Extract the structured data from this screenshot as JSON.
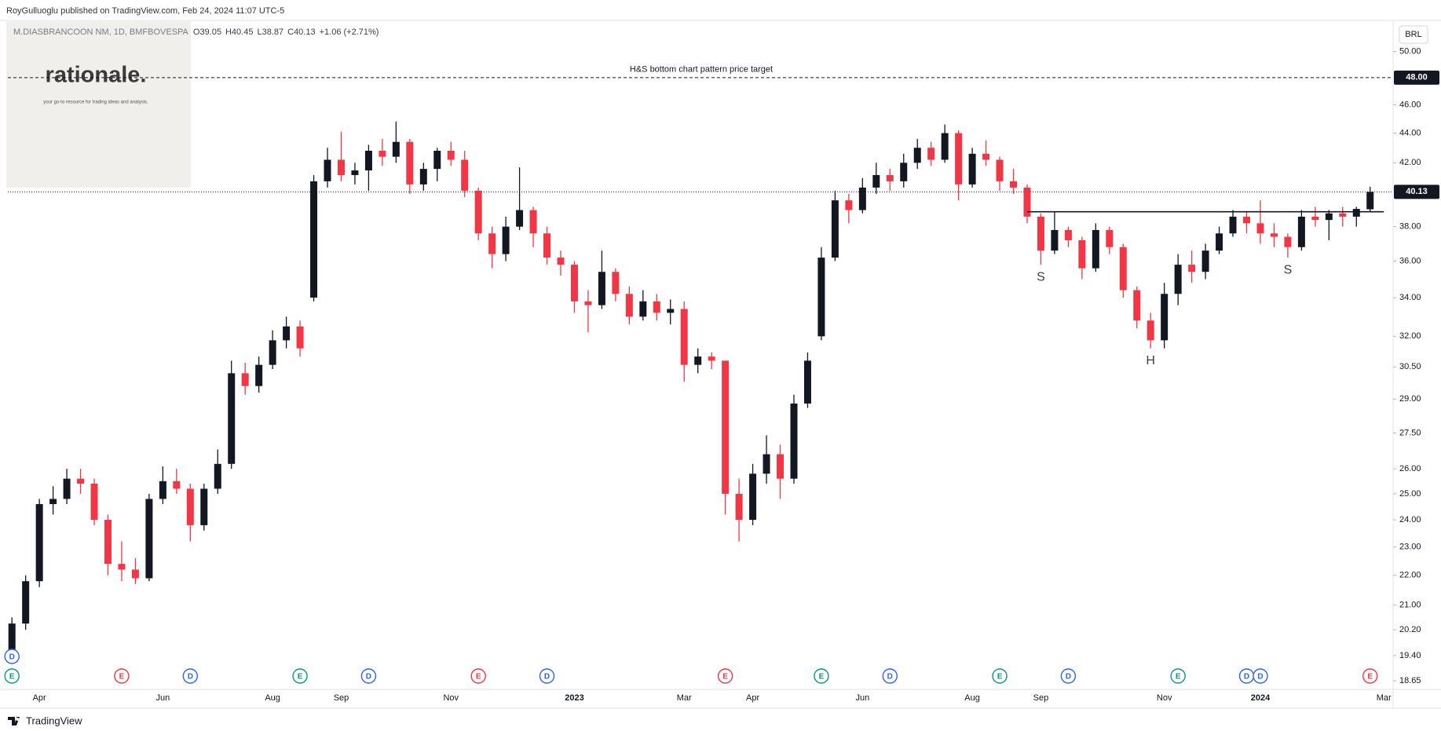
{
  "header": {
    "publisher": "RoyGulluoglu published on TradingView.com, Feb 24, 2024 11:07 UTC-5"
  },
  "logo": {
    "name": "rationale.",
    "tagline": "your go-to resource for trading ideas and analysis."
  },
  "footer": {
    "brand": "TradingView"
  },
  "chart_data": {
    "type": "candlestick",
    "symbol": "M.DIASBRANCOON NM, 1D, BMFBOVESPA",
    "ohlc_labels": [
      "O39.05",
      "H40.45",
      "L38.87",
      "C40.13",
      "+1.06 (+2.71%)"
    ],
    "currency": "BRL",
    "categories": [
      null,
      null,
      "Apr",
      null,
      null,
      null,
      null,
      null,
      null,
      null,
      null,
      "Jun",
      null,
      null,
      null,
      null,
      null,
      null,
      null,
      "Aug",
      null,
      null,
      null,
      null,
      "Sep",
      null,
      null,
      null,
      null,
      null,
      null,
      null,
      "Nov",
      null,
      null,
      null,
      null,
      null,
      null,
      null,
      null,
      "2023",
      null,
      null,
      null,
      null,
      null,
      null,
      null,
      "Mar",
      null,
      null,
      null,
      null,
      "Apr",
      null,
      null,
      null,
      null,
      null,
      null,
      null,
      "Jun",
      null,
      null,
      null,
      null,
      null,
      null,
      null,
      "Aug",
      null,
      null,
      null,
      null,
      "Sep",
      null,
      null,
      null,
      null,
      null,
      null,
      null,
      null,
      "Nov",
      null,
      null,
      null,
      null,
      null,
      null,
      "2024",
      null,
      null,
      null,
      null,
      null,
      null,
      null,
      null,
      "Mar"
    ],
    "open": [
      19.4,
      20.4,
      21.8,
      24.6,
      24.8,
      25.6,
      25.4,
      24.0,
      22.4,
      22.2,
      21.9,
      24.8,
      25.5,
      25.2,
      23.8,
      25.2,
      26.2,
      30.2,
      29.6,
      30.6,
      31.8,
      32.5,
      34.0,
      40.8,
      42.2,
      41.2,
      41.5,
      42.8,
      42.4,
      43.4,
      40.6,
      41.6,
      42.8,
      42.2,
      40.2,
      37.6,
      36.4,
      38.0,
      39.0,
      37.6,
      36.2,
      35.8,
      33.8,
      33.6,
      35.4,
      34.2,
      33.0,
      33.8,
      33.2,
      33.4,
      30.6,
      31.0,
      30.8,
      25.0,
      24.0,
      25.8,
      26.6,
      25.6,
      28.8,
      32.0,
      36.2,
      39.6,
      39.0,
      40.4,
      41.2,
      40.8,
      42.0,
      43.0,
      42.2,
      44.0,
      40.6,
      42.6,
      42.2,
      40.8,
      40.4,
      38.6,
      36.6,
      37.8,
      37.2,
      35.6,
      37.8,
      36.8,
      34.4,
      32.8,
      31.8,
      34.2,
      35.8,
      35.4,
      36.6,
      37.6,
      38.6,
      38.2,
      37.6,
      37.4,
      36.8,
      38.6,
      38.4,
      38.8,
      38.6,
      39.05,
      null
    ],
    "high": [
      20.6,
      22.0,
      24.8,
      25.3,
      26.0,
      26.0,
      25.6,
      24.2,
      23.2,
      22.6,
      25.0,
      26.1,
      26.0,
      25.4,
      25.4,
      26.8,
      30.8,
      30.7,
      31.0,
      32.3,
      33.0,
      32.8,
      41.2,
      43.0,
      44.1,
      42.0,
      43.2,
      43.6,
      44.8,
      43.6,
      42.0,
      43.0,
      43.4,
      42.8,
      40.4,
      38.0,
      38.6,
      41.7,
      39.2,
      38.0,
      36.6,
      36.0,
      34.4,
      36.6,
      35.6,
      34.6,
      34.4,
      34.2,
      33.9,
      33.8,
      31.4,
      31.2,
      30.8,
      25.6,
      26.2,
      27.4,
      27.0,
      29.2,
      31.2,
      36.8,
      40.2,
      40.0,
      41.0,
      42.0,
      41.6,
      42.6,
      43.6,
      43.4,
      44.6,
      44.2,
      43.0,
      43.5,
      42.4,
      41.6,
      40.6,
      38.8,
      38.9,
      38.0,
      37.4,
      38.2,
      38.0,
      37.0,
      34.6,
      33.2,
      34.8,
      36.4,
      36.6,
      37.0,
      38.0,
      39.0,
      38.9,
      39.6,
      38.2,
      37.6,
      39.0,
      39.2,
      39.0,
      39.2,
      39.2,
      40.45,
      null
    ],
    "low": [
      19.2,
      20.2,
      21.6,
      24.2,
      24.6,
      25.0,
      23.8,
      22.0,
      21.8,
      21.7,
      21.8,
      24.6,
      25.0,
      23.2,
      23.6,
      25.0,
      26.0,
      29.2,
      29.3,
      30.4,
      31.4,
      31.0,
      33.8,
      40.4,
      40.8,
      40.6,
      40.2,
      41.8,
      42.0,
      40.0,
      40.2,
      40.8,
      41.8,
      39.8,
      37.2,
      35.6,
      36.0,
      37.8,
      36.8,
      35.8,
      35.2,
      33.2,
      32.2,
      33.4,
      33.8,
      32.6,
      32.8,
      32.8,
      32.6,
      29.8,
      30.2,
      30.4,
      24.2,
      23.2,
      23.8,
      25.4,
      24.8,
      25.4,
      28.6,
      31.8,
      36.0,
      38.2,
      38.8,
      40.0,
      40.2,
      40.4,
      41.6,
      41.8,
      42.0,
      39.6,
      40.4,
      41.8,
      40.2,
      40.0,
      38.2,
      35.8,
      36.4,
      36.8,
      35.0,
      35.4,
      36.4,
      34.0,
      32.4,
      31.4,
      31.4,
      33.6,
      34.8,
      35.0,
      36.4,
      37.4,
      37.6,
      37.0,
      36.8,
      36.2,
      36.6,
      38.0,
      37.2,
      38.0,
      38.0,
      38.87,
      null
    ],
    "close": [
      20.4,
      21.8,
      24.6,
      24.8,
      25.6,
      25.4,
      24.0,
      22.4,
      22.2,
      21.9,
      24.8,
      25.5,
      25.2,
      23.8,
      25.2,
      26.2,
      30.2,
      29.6,
      30.6,
      31.8,
      32.5,
      31.4,
      40.8,
      42.2,
      41.2,
      41.5,
      42.8,
      42.4,
      43.4,
      40.6,
      41.6,
      42.8,
      42.2,
      40.2,
      37.6,
      36.4,
      38.0,
      39.0,
      37.6,
      36.2,
      35.8,
      33.8,
      33.6,
      35.4,
      34.2,
      33.0,
      33.8,
      33.2,
      33.4,
      30.6,
      31.0,
      30.8,
      25.0,
      24.0,
      25.8,
      26.6,
      25.6,
      28.8,
      30.8,
      36.2,
      39.6,
      39.0,
      40.4,
      41.2,
      40.8,
      42.0,
      43.0,
      42.2,
      44.0,
      40.6,
      42.6,
      42.2,
      40.8,
      40.4,
      38.6,
      36.6,
      37.8,
      37.2,
      35.6,
      37.8,
      36.8,
      34.4,
      32.8,
      31.8,
      34.2,
      35.8,
      35.4,
      36.6,
      37.6,
      38.6,
      38.2,
      37.6,
      37.4,
      36.8,
      38.6,
      38.4,
      38.8,
      38.6,
      39.07,
      40.13,
      null
    ],
    "up_color": "#131722",
    "down_color": "#f23645",
    "log_scale": true,
    "grid": false,
    "ylim": [
      18.4,
      52.5
    ],
    "yticks": [
      {
        "value": 50,
        "label": "50.00"
      },
      {
        "value": 46,
        "label": "46.00"
      },
      {
        "value": 44,
        "label": "44.00"
      },
      {
        "value": 42,
        "label": "42.00"
      },
      {
        "value": 38,
        "label": "38.00"
      },
      {
        "value": 36,
        "label": "36.00"
      },
      {
        "value": 34,
        "label": "34.00"
      },
      {
        "value": 32,
        "label": "32.00"
      },
      {
        "value": 30.5,
        "label": "30.50"
      },
      {
        "value": 29,
        "label": "29.00"
      },
      {
        "value": 27.5,
        "label": "27.50"
      },
      {
        "value": 26,
        "label": "26.00"
      },
      {
        "value": 25,
        "label": "25.00"
      },
      {
        "value": 24,
        "label": "24.00"
      },
      {
        "value": 23,
        "label": "23.00"
      },
      {
        "value": 22,
        "label": "22.00"
      },
      {
        "value": 21,
        "label": "21.00"
      },
      {
        "value": 20.2,
        "label": "20.20"
      },
      {
        "value": 19.4,
        "label": "19.40"
      },
      {
        "value": 18.65,
        "label": "18.65"
      }
    ],
    "last_price": {
      "value": 40.13,
      "label": "40.13"
    },
    "target": {
      "value": 48,
      "label": "48.00",
      "text": "H&S bottom chart pattern price target"
    },
    "neckline": {
      "color": "#131722",
      "values": [
        null,
        null,
        null,
        null,
        null,
        null,
        null,
        null,
        null,
        null,
        null,
        null,
        null,
        null,
        null,
        null,
        null,
        null,
        null,
        null,
        null,
        null,
        null,
        null,
        null,
        null,
        null,
        null,
        null,
        null,
        null,
        null,
        null,
        null,
        null,
        null,
        null,
        null,
        null,
        null,
        null,
        null,
        null,
        null,
        null,
        null,
        null,
        null,
        null,
        null,
        null,
        null,
        null,
        null,
        null,
        null,
        null,
        null,
        null,
        null,
        null,
        null,
        null,
        null,
        null,
        null,
        null,
        null,
        null,
        null,
        null,
        null,
        null,
        null,
        38.9,
        38.9,
        38.9,
        38.9,
        38.9,
        38.9,
        38.9,
        38.9,
        38.9,
        38.9,
        38.9,
        38.9,
        38.9,
        38.9,
        38.9,
        38.9,
        38.9,
        38.9,
        38.9,
        38.9,
        38.9,
        38.9,
        38.9,
        38.9,
        38.9,
        38.9,
        38.9
      ]
    },
    "pattern_labels": [
      null,
      null,
      null,
      null,
      null,
      null,
      null,
      null,
      null,
      null,
      null,
      null,
      null,
      null,
      null,
      null,
      null,
      null,
      null,
      null,
      null,
      null,
      null,
      null,
      null,
      null,
      null,
      null,
      null,
      null,
      null,
      null,
      null,
      null,
      null,
      null,
      null,
      null,
      null,
      null,
      null,
      null,
      null,
      null,
      null,
      null,
      null,
      null,
      null,
      null,
      null,
      null,
      null,
      null,
      null,
      null,
      null,
      null,
      null,
      null,
      null,
      null,
      null,
      null,
      null,
      null,
      null,
      null,
      null,
      null,
      null,
      null,
      null,
      null,
      null,
      "S",
      null,
      null,
      null,
      null,
      null,
      null,
      null,
      "H",
      null,
      null,
      null,
      null,
      null,
      null,
      null,
      null,
      null,
      "S",
      null,
      null,
      null,
      null,
      null,
      null,
      null
    ],
    "events": [
      [
        {
          "label": "D",
          "color": "#2962ff"
        },
        {
          "label": "E",
          "color": "#089981"
        }
      ],
      null,
      null,
      null,
      null,
      null,
      null,
      null,
      [
        {
          "label": "E",
          "color": "#f23645"
        }
      ],
      null,
      null,
      null,
      null,
      [
        {
          "label": "D",
          "color": "#2962ff"
        }
      ],
      null,
      null,
      null,
      null,
      null,
      null,
      null,
      [
        {
          "label": "E",
          "color": "#089981"
        }
      ],
      null,
      null,
      null,
      null,
      [
        {
          "label": "D",
          "color": "#2962ff"
        }
      ],
      null,
      null,
      null,
      null,
      null,
      null,
      null,
      [
        {
          "label": "E",
          "color": "#f23645"
        }
      ],
      null,
      null,
      null,
      null,
      [
        {
          "label": "D",
          "color": "#2962ff"
        }
      ],
      null,
      null,
      null,
      null,
      null,
      null,
      null,
      null,
      null,
      null,
      null,
      null,
      [
        {
          "label": "E",
          "color": "#f23645"
        }
      ],
      null,
      null,
      null,
      null,
      null,
      null,
      [
        {
          "label": "E",
          "color": "#089981"
        }
      ],
      null,
      null,
      null,
      null,
      [
        {
          "label": "D",
          "color": "#2962ff"
        }
      ],
      null,
      null,
      null,
      null,
      null,
      null,
      null,
      [
        {
          "label": "E",
          "color": "#089981"
        }
      ],
      null,
      null,
      null,
      null,
      [
        {
          "label": "D",
          "color": "#2962ff"
        }
      ],
      null,
      null,
      null,
      null,
      null,
      null,
      null,
      [
        {
          "label": "E",
          "color": "#089981"
        }
      ],
      null,
      null,
      null,
      null,
      [
        {
          "label": "D",
          "color": "#2962ff"
        }
      ],
      [
        {
          "label": "D",
          "color": "#2962ff"
        }
      ],
      null,
      null,
      null,
      null,
      null,
      null,
      null,
      [
        {
          "label": "E",
          "color": "#f23645"
        }
      ],
      null
    ]
  }
}
